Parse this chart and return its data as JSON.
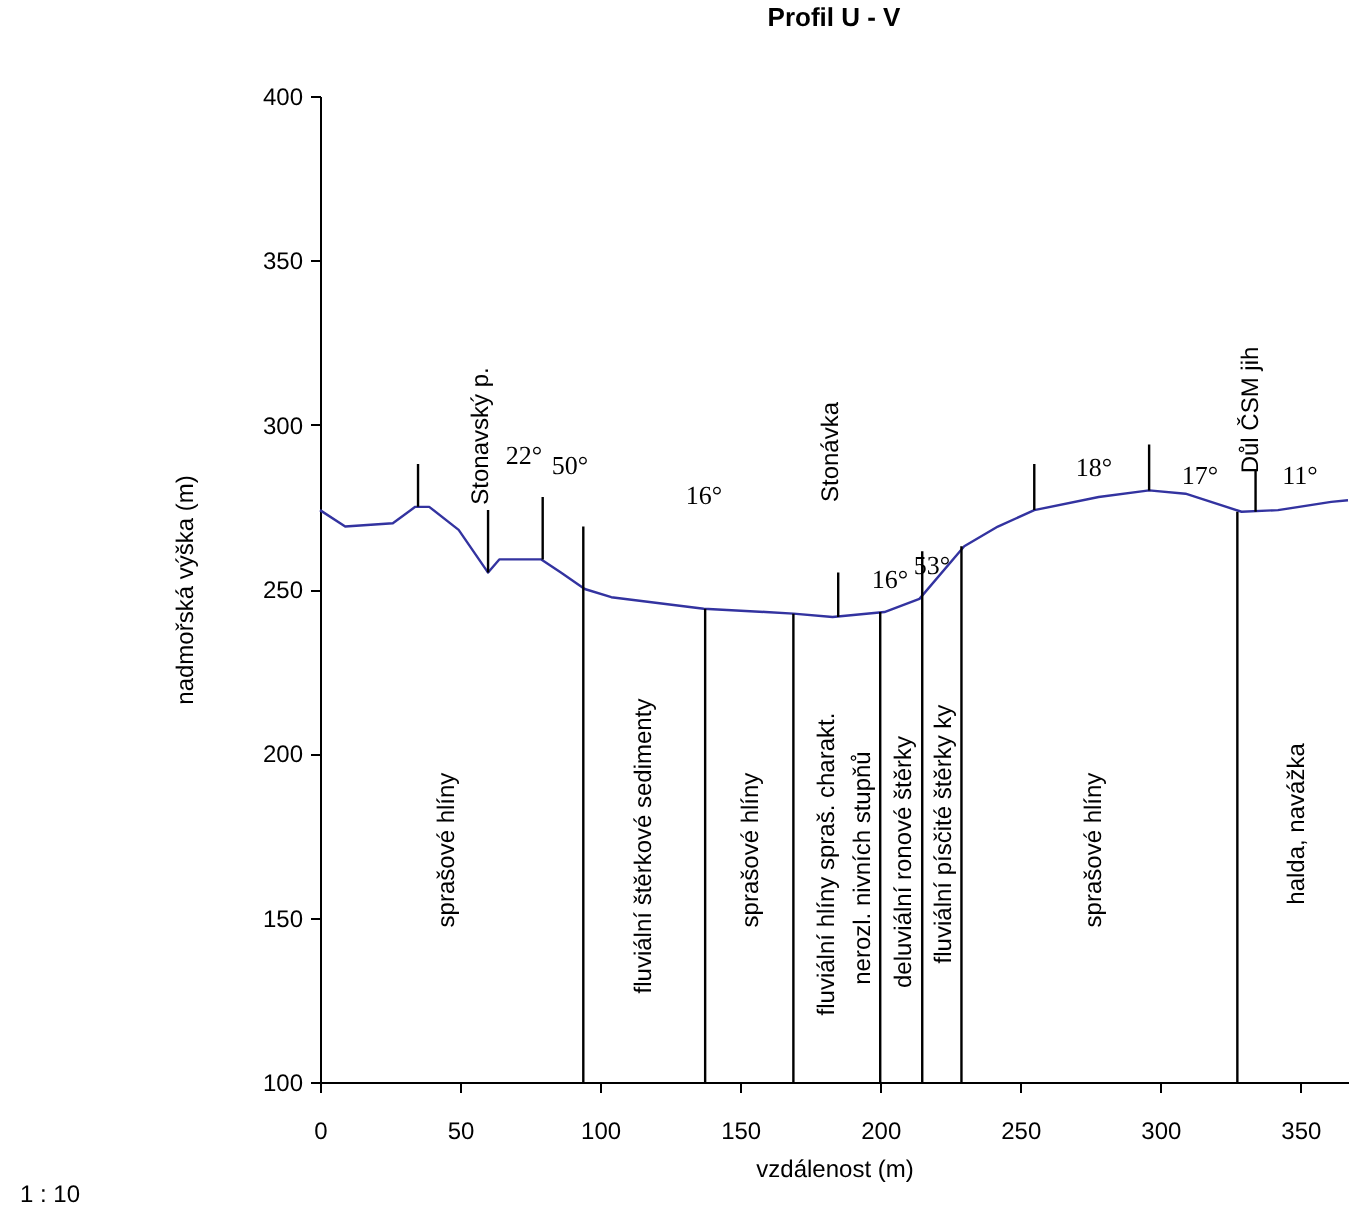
{
  "chart_data": {
    "type": "line",
    "title": "Profil U - V",
    "xlabel": "vzdálenost (m)",
    "ylabel": "nadmořská výška (m)",
    "xlim": [
      0,
      367
    ],
    "ylim": [
      100,
      400
    ],
    "xticks": [
      0,
      50,
      100,
      150,
      200,
      250,
      300,
      350
    ],
    "yticks": [
      100,
      150,
      200,
      250,
      300,
      350,
      400
    ],
    "grid": false,
    "marker": "none",
    "line_style": "solid",
    "series": [
      {
        "color": "#3333a0",
        "x": [
          0,
          9,
          26,
          34,
          39,
          49.5,
          60,
          64,
          79,
          86,
          94.5,
          104,
          137,
          159,
          169,
          183,
          201.5,
          214,
          230,
          242,
          255,
          278,
          296,
          309,
          329,
          342,
          361,
          367
        ],
        "values": [
          274,
          269,
          270,
          275,
          275,
          268,
          255,
          259,
          259,
          255,
          250,
          247.5,
          244,
          243,
          242.5,
          241.5,
          243,
          247,
          263,
          269,
          274,
          278,
          280,
          279,
          273.5,
          274,
          276.5,
          277
        ]
      },
      {
        "color": "#000000",
        "x": [
          94,
          94,
          null,
          137.5,
          137.5,
          null,
          169,
          169,
          null,
          200,
          200,
          null,
          215,
          215,
          null,
          229,
          229,
          null,
          327.5,
          327.5,
          null,
          35,
          35,
          null,
          60,
          60,
          null,
          79.5,
          79.5,
          null,
          185,
          185,
          null,
          255,
          255,
          null,
          296,
          296,
          null,
          334,
          334
        ],
        "values": [
          100,
          269,
          null,
          100,
          244,
          null,
          100,
          242.5,
          null,
          100,
          243,
          null,
          100,
          261.5,
          null,
          100,
          263,
          null,
          100,
          273.5,
          null,
          275,
          288,
          null,
          255,
          274,
          null,
          259,
          278,
          null,
          241.5,
          255,
          null,
          274,
          288,
          null,
          280,
          294,
          null,
          273.5,
          286
        ]
      }
    ],
    "annotations": [
      "22°",
      "50°",
      "16°",
      "16°",
      "53°",
      "18°",
      "17°",
      "11°",
      "Stonavský p.",
      "Stonávka",
      "Důl ČSM jih",
      "sprašové hlíny",
      "fluviální štěrkové sedimenty",
      "sprašové hlíny",
      "fluviální hlíny spraš. charakt.",
      "nerozl. nivních stupňů",
      "deluviální ronové štěrky",
      "fluviální písčité štěrky ky",
      "sprašové hlíny",
      "halda, navážka",
      "1 : 10"
    ]
  }
}
